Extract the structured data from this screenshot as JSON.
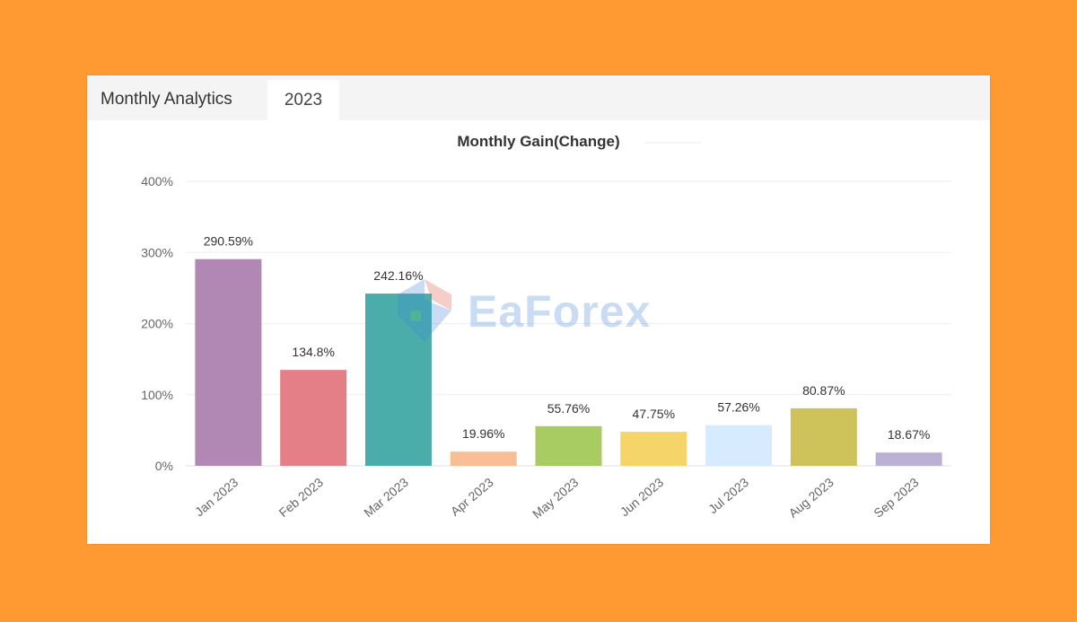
{
  "header": {
    "title": "Monthly Analytics",
    "year_tab": "2023"
  },
  "watermark": "EaForex",
  "chart_data": {
    "type": "bar",
    "title": "Monthly Gain(Change)",
    "xlabel": "",
    "ylabel": "",
    "categories": [
      "Jan 2023",
      "Feb 2023",
      "Mar 2023",
      "Apr 2023",
      "May 2023",
      "Jun 2023",
      "Jul 2023",
      "Aug 2023",
      "Sep 2023"
    ],
    "values": [
      290.59,
      134.8,
      242.16,
      19.96,
      55.76,
      47.75,
      57.26,
      80.87,
      18.67
    ],
    "data_labels": [
      "290.59%",
      "134.8%",
      "242.16%",
      "19.96%",
      "55.76%",
      "47.75%",
      "57.26%",
      "80.87%",
      "18.67%"
    ],
    "colors": [
      "#B088B3",
      "#E47F87",
      "#4AADAA",
      "#F8BE96",
      "#A8CB62",
      "#F5D56A",
      "#D6EBFD",
      "#CDC35A",
      "#B9B0D2"
    ],
    "ylim": [
      0,
      400
    ],
    "yticks": [
      0,
      100,
      200,
      300,
      400
    ],
    "ytick_labels": [
      "0%",
      "100%",
      "200%",
      "300%",
      "400%"
    ],
    "grid": true,
    "legend": "none"
  }
}
